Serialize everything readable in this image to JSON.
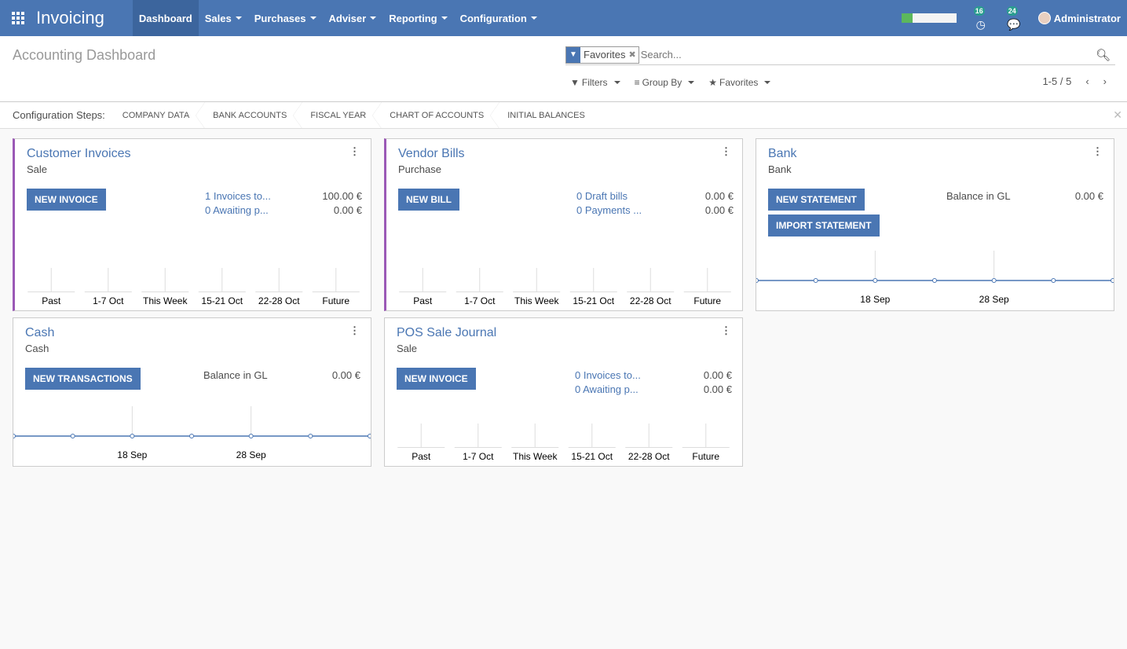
{
  "app": {
    "title": "Invoicing",
    "menus": [
      {
        "label": "Dashboard",
        "active": true,
        "dropdown": false
      },
      {
        "label": "Sales",
        "dropdown": true
      },
      {
        "label": "Purchases",
        "dropdown": true
      },
      {
        "label": "Adviser",
        "dropdown": true
      },
      {
        "label": "Reporting",
        "dropdown": true
      },
      {
        "label": "Configuration",
        "dropdown": true
      }
    ],
    "activities_count": "16",
    "messages_count": "24",
    "user": "Administrator",
    "progress": 20
  },
  "page": {
    "title": "Accounting Dashboard"
  },
  "search": {
    "facet": "Favorites",
    "placeholder": "Search...",
    "filters": "Filters",
    "group_by": "Group By",
    "favorites": "Favorites",
    "pager": "1-5 / 5"
  },
  "steps": {
    "label": "Configuration Steps:",
    "items": [
      "COMPANY DATA",
      "BANK ACCOUNTS",
      "FISCAL YEAR",
      "CHART OF ACCOUNTS",
      "INITIAL BALANCES"
    ]
  },
  "colors": {
    "navbar": "#4a76b3",
    "accent": "#9b59b6",
    "button": "#4a76b3"
  },
  "cards": [
    {
      "title": "Customer Invoices",
      "type": "Sale",
      "buttons": [
        "NEW INVOICE"
      ],
      "lines": [
        {
          "label": "1 Invoices to...",
          "value": "100.00 €"
        },
        {
          "label": "0 Awaiting p...",
          "value": "0.00 €"
        }
      ],
      "chart": "bar",
      "categories": [
        "Past",
        "1-7 Oct",
        "This Week",
        "15-21 Oct",
        "22-28 Oct",
        "Future"
      ],
      "values": [
        0,
        0,
        0,
        0,
        0,
        0
      ]
    },
    {
      "title": "Vendor Bills",
      "type": "Purchase",
      "buttons": [
        "NEW BILL"
      ],
      "lines": [
        {
          "label": "0 Draft bills",
          "value": "0.00 €"
        },
        {
          "label": "0 Payments ...",
          "value": "0.00 €"
        }
      ],
      "chart": "bar",
      "categories": [
        "Past",
        "1-7 Oct",
        "This Week",
        "15-21 Oct",
        "22-28 Oct",
        "Future"
      ],
      "values": [
        0,
        0,
        0,
        0,
        0,
        0
      ]
    },
    {
      "title": "Bank",
      "type": "Bank",
      "buttons": [
        "NEW STATEMENT",
        "IMPORT STATEMENT"
      ],
      "balance_label": "Balance in GL",
      "balance": "0.00 €",
      "chart": "line",
      "xticks": [
        "18 Sep",
        "28 Sep"
      ],
      "values": [
        0,
        0,
        0,
        0,
        0,
        0,
        0
      ]
    },
    {
      "title": "Cash",
      "type": "Cash",
      "buttons": [
        "NEW TRANSACTIONS"
      ],
      "balance_label": "Balance in GL",
      "balance": "0.00 €",
      "chart": "line",
      "xticks": [
        "18 Sep",
        "28 Sep"
      ],
      "values": [
        0,
        0,
        0,
        0,
        0,
        0,
        0
      ]
    },
    {
      "title": "POS Sale Journal",
      "type": "Sale",
      "buttons": [
        "NEW INVOICE"
      ],
      "lines": [
        {
          "label": "0 Invoices to...",
          "value": "0.00 €"
        },
        {
          "label": "0 Awaiting p...",
          "value": "0.00 €"
        }
      ],
      "chart": "bar",
      "categories": [
        "Past",
        "1-7 Oct",
        "This Week",
        "15-21 Oct",
        "22-28 Oct",
        "Future"
      ],
      "values": [
        0,
        0,
        0,
        0,
        0,
        0
      ]
    }
  ]
}
